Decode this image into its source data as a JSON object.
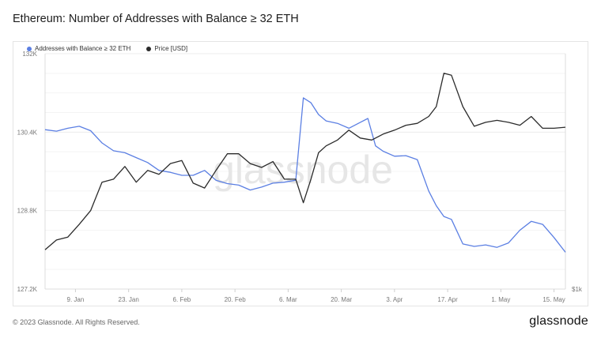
{
  "title": "Ethereum: Number of Addresses with Balance ≥ 32 ETH",
  "footer": "© 2023 Glassnode. All Rights Reserved.",
  "brand": "glassnode",
  "watermark": "glassnode",
  "colors": {
    "addresses": "#5b7fe3",
    "price": "#2b2b2b",
    "grid": "#ececec",
    "axis": "#777777"
  },
  "chart_data": {
    "type": "line",
    "title": "Ethereum: Number of Addresses with Balance ≥ 32 ETH",
    "legend_placement": "top-left",
    "grid": true,
    "x_range": [
      "2023-01-01",
      "2023-05-18"
    ],
    "xtick_labels": [
      "9. Jan",
      "23. Jan",
      "6. Feb",
      "20. Feb",
      "6. Mar",
      "20. Mar",
      "3. Apr",
      "17. Apr",
      "1. May",
      "15. May"
    ],
    "xtick_dates": [
      "2023-01-09",
      "2023-01-23",
      "2023-02-06",
      "2023-02-20",
      "2023-03-06",
      "2023-03-20",
      "2023-04-03",
      "2023-04-17",
      "2023-05-01",
      "2023-05-15"
    ],
    "y_left": {
      "ticks": [
        "127.2K",
        "128.8K",
        "130.4K",
        "132K"
      ],
      "tick_values": [
        127200,
        128800,
        130400,
        132000
      ],
      "range": [
        127200,
        132000
      ]
    },
    "y_right": {
      "tick_label": "$1k",
      "tick_value": 1000,
      "range": [
        1000,
        2200
      ]
    },
    "series": [
      {
        "name": "Addresses with Balance ≥ 32 ETH",
        "axis": "left",
        "x": [
          "2023-01-01",
          "2023-01-04",
          "2023-01-07",
          "2023-01-10",
          "2023-01-13",
          "2023-01-16",
          "2023-01-19",
          "2023-01-22",
          "2023-01-25",
          "2023-01-28",
          "2023-01-31",
          "2023-02-03",
          "2023-02-06",
          "2023-02-09",
          "2023-02-12",
          "2023-02-15",
          "2023-02-18",
          "2023-02-21",
          "2023-02-24",
          "2023-02-27",
          "2023-03-02",
          "2023-03-05",
          "2023-03-08",
          "2023-03-10",
          "2023-03-12",
          "2023-03-14",
          "2023-03-16",
          "2023-03-19",
          "2023-03-22",
          "2023-03-25",
          "2023-03-27",
          "2023-03-29",
          "2023-03-31",
          "2023-04-03",
          "2023-04-06",
          "2023-04-09",
          "2023-04-12",
          "2023-04-14",
          "2023-04-16",
          "2023-04-18",
          "2023-04-21",
          "2023-04-24",
          "2023-04-27",
          "2023-04-30",
          "2023-05-03",
          "2023-05-06",
          "2023-05-09",
          "2023-05-12",
          "2023-05-15",
          "2023-05-18"
        ],
        "y": [
          130450,
          130420,
          130480,
          130520,
          130430,
          130180,
          130020,
          129980,
          129880,
          129780,
          129620,
          129580,
          129520,
          129520,
          129620,
          129420,
          129350,
          129320,
          129220,
          129280,
          129360,
          129380,
          129420,
          131100,
          131000,
          130760,
          130630,
          130580,
          130480,
          130600,
          130680,
          130120,
          130010,
          129910,
          129920,
          129840,
          129200,
          128900,
          128680,
          128620,
          128120,
          128070,
          128100,
          128050,
          128140,
          128400,
          128580,
          128520,
          128250,
          127950
        ]
      },
      {
        "name": "Price [USD]",
        "axis": "right",
        "x": [
          "2023-01-01",
          "2023-01-04",
          "2023-01-07",
          "2023-01-10",
          "2023-01-13",
          "2023-01-16",
          "2023-01-19",
          "2023-01-22",
          "2023-01-25",
          "2023-01-28",
          "2023-01-31",
          "2023-02-03",
          "2023-02-06",
          "2023-02-09",
          "2023-02-12",
          "2023-02-15",
          "2023-02-18",
          "2023-02-21",
          "2023-02-24",
          "2023-02-27",
          "2023-03-02",
          "2023-03-05",
          "2023-03-08",
          "2023-03-10",
          "2023-03-12",
          "2023-03-14",
          "2023-03-16",
          "2023-03-19",
          "2023-03-22",
          "2023-03-25",
          "2023-03-28",
          "2023-03-31",
          "2023-04-03",
          "2023-04-06",
          "2023-04-09",
          "2023-04-12",
          "2023-04-14",
          "2023-04-16",
          "2023-04-18",
          "2023-04-21",
          "2023-04-24",
          "2023-04-27",
          "2023-04-30",
          "2023-05-03",
          "2023-05-06",
          "2023-05-09",
          "2023-05-12",
          "2023-05-15",
          "2023-05-18"
        ],
        "y": [
          1200,
          1250,
          1265,
          1330,
          1400,
          1545,
          1560,
          1625,
          1545,
          1605,
          1585,
          1640,
          1655,
          1540,
          1515,
          1605,
          1690,
          1690,
          1640,
          1620,
          1650,
          1560,
          1560,
          1440,
          1560,
          1695,
          1730,
          1760,
          1810,
          1770,
          1760,
          1790,
          1810,
          1835,
          1845,
          1880,
          1930,
          2100,
          2090,
          1930,
          1830,
          1850,
          1860,
          1850,
          1835,
          1880,
          1820,
          1820,
          1825
        ]
      }
    ]
  }
}
